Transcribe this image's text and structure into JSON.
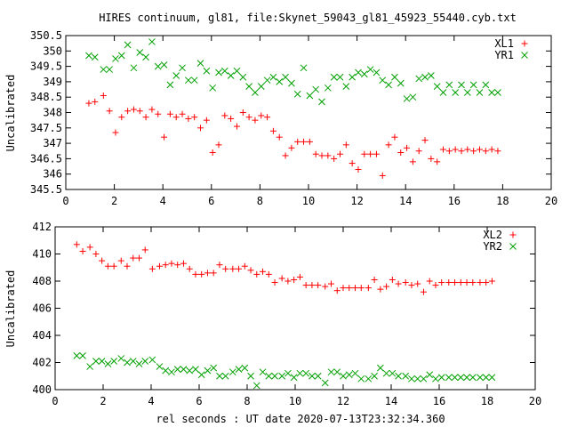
{
  "title": "HIRES continuum, gl81, file:Skynet_59043_gl81_45923_55440.cyb.txt",
  "xlabel": "rel seconds : UT date 2020-07-13T23:32:34.360",
  "chart_data": [
    {
      "type": "scatter",
      "ylabel": "Uncalibrated",
      "xlim": [
        0,
        20
      ],
      "ylim": [
        345.5,
        350.5
      ],
      "xticks": [
        "0",
        "2",
        "4",
        "6",
        "8",
        "10",
        "12",
        "14",
        "16",
        "18",
        "20"
      ],
      "yticks": [
        "345.5",
        "346",
        "346.5",
        "347",
        "347.5",
        "348",
        "348.5",
        "349",
        "349.5",
        "350",
        "350.5"
      ],
      "grid": false,
      "legend_position": "top-right",
      "series": [
        {
          "name": "XL1",
          "marker": "plus",
          "color": "#ff0000",
          "x": [
            0.95,
            1.2,
            1.55,
            1.8,
            2.05,
            2.3,
            2.55,
            2.8,
            3.05,
            3.3,
            3.55,
            3.8,
            4.05,
            4.3,
            4.55,
            4.8,
            5.05,
            5.3,
            5.55,
            5.8,
            6.05,
            6.3,
            6.55,
            6.8,
            7.05,
            7.3,
            7.55,
            7.8,
            8.05,
            8.3,
            8.55,
            8.8,
            9.05,
            9.3,
            9.55,
            9.8,
            10.05,
            10.3,
            10.55,
            10.8,
            11.05,
            11.3,
            11.55,
            11.8,
            12.05,
            12.3,
            12.55,
            12.8,
            13.05,
            13.3,
            13.55,
            13.8,
            14.05,
            14.3,
            14.55,
            14.8,
            15.05,
            15.3,
            15.55,
            15.8,
            16.05,
            16.3,
            16.55,
            16.8,
            17.05,
            17.3,
            17.55,
            17.8
          ],
          "y": [
            348.3,
            348.35,
            348.55,
            348.05,
            347.35,
            347.85,
            348.05,
            348.1,
            348.05,
            347.85,
            348.1,
            347.95,
            347.2,
            347.95,
            347.85,
            347.95,
            347.8,
            347.85,
            347.5,
            347.75,
            346.7,
            346.95,
            347.9,
            347.8,
            347.55,
            348.0,
            347.85,
            347.75,
            347.9,
            347.85,
            347.4,
            347.2,
            346.6,
            346.85,
            347.05,
            347.05,
            347.05,
            346.65,
            346.6,
            346.6,
            346.5,
            346.65,
            346.95,
            346.35,
            346.15,
            346.65,
            346.65,
            346.65,
            345.95,
            346.95,
            347.2,
            346.7,
            346.85,
            346.4,
            346.75,
            347.1,
            346.5,
            346.4,
            346.8,
            346.75,
            346.8,
            346.75,
            346.8,
            346.75,
            346.8,
            346.75,
            346.8,
            346.75
          ]
        },
        {
          "name": "YR1",
          "marker": "cross",
          "color": "#00a000",
          "x": [
            0.95,
            1.2,
            1.55,
            1.8,
            2.05,
            2.3,
            2.55,
            2.8,
            3.05,
            3.3,
            3.55,
            3.8,
            4.05,
            4.3,
            4.55,
            4.8,
            5.05,
            5.3,
            5.55,
            5.8,
            6.05,
            6.3,
            6.55,
            6.8,
            7.05,
            7.3,
            7.55,
            7.8,
            8.05,
            8.3,
            8.55,
            8.8,
            9.05,
            9.3,
            9.55,
            9.8,
            10.05,
            10.3,
            10.55,
            10.8,
            11.05,
            11.3,
            11.55,
            11.8,
            12.05,
            12.3,
            12.55,
            12.8,
            13.05,
            13.3,
            13.55,
            13.8,
            14.05,
            14.3,
            14.55,
            14.8,
            15.05,
            15.3,
            15.55,
            15.8,
            16.05,
            16.3,
            16.55,
            16.8,
            17.05,
            17.3,
            17.55,
            17.8
          ],
          "y": [
            349.85,
            349.8,
            349.4,
            349.4,
            349.75,
            349.85,
            350.2,
            349.45,
            349.95,
            349.8,
            350.3,
            349.5,
            349.55,
            348.9,
            349.2,
            349.45,
            349.05,
            349.05,
            349.6,
            349.35,
            348.8,
            349.3,
            349.35,
            349.2,
            349.35,
            349.15,
            348.85,
            348.65,
            348.85,
            349.05,
            349.15,
            349.0,
            349.15,
            348.95,
            348.6,
            349.45,
            348.55,
            348.75,
            348.35,
            348.8,
            349.15,
            349.15,
            348.85,
            349.15,
            349.3,
            349.25,
            349.4,
            349.3,
            349.05,
            348.9,
            349.15,
            348.95,
            348.45,
            348.5,
            349.1,
            349.15,
            349.2,
            348.85,
            348.65,
            348.9,
            348.65,
            348.9,
            348.65,
            348.9,
            348.65,
            348.9,
            348.65,
            348.65
          ]
        }
      ]
    },
    {
      "type": "scatter",
      "ylabel": "Uncalibrated",
      "xlim": [
        0,
        20
      ],
      "ylim": [
        400,
        412
      ],
      "xticks": [
        "0",
        "2",
        "4",
        "6",
        "8",
        "10",
        "12",
        "14",
        "16",
        "18",
        "20"
      ],
      "yticks": [
        "400",
        "402",
        "404",
        "406",
        "408",
        "410",
        "412"
      ],
      "grid": false,
      "legend_position": "top-right",
      "series": [
        {
          "name": "XL2",
          "marker": "plus",
          "color": "#ff0000",
          "x": [
            0.9,
            1.15,
            1.45,
            1.7,
            1.95,
            2.2,
            2.45,
            2.75,
            3.0,
            3.25,
            3.5,
            3.75,
            4.05,
            4.35,
            4.6,
            4.85,
            5.1,
            5.35,
            5.6,
            5.85,
            6.1,
            6.35,
            6.6,
            6.85,
            7.1,
            7.4,
            7.65,
            7.9,
            8.15,
            8.4,
            8.65,
            8.9,
            9.15,
            9.45,
            9.7,
            9.95,
            10.2,
            10.45,
            10.7,
            10.95,
            11.25,
            11.5,
            11.75,
            12.0,
            12.25,
            12.5,
            12.75,
            13.05,
            13.3,
            13.55,
            13.8,
            14.05,
            14.3,
            14.6,
            14.85,
            15.1,
            15.35,
            15.6,
            15.85,
            16.1,
            16.4,
            16.65,
            16.9,
            17.15,
            17.4,
            17.7,
            17.95,
            18.2
          ],
          "y": [
            410.7,
            410.2,
            410.5,
            410.0,
            409.5,
            409.1,
            409.1,
            409.5,
            409.1,
            409.7,
            409.7,
            410.3,
            408.9,
            409.1,
            409.2,
            409.3,
            409.2,
            409.3,
            408.9,
            408.5,
            408.5,
            408.6,
            408.6,
            409.2,
            408.9,
            408.9,
            408.9,
            409.1,
            408.8,
            408.5,
            408.7,
            408.5,
            407.9,
            408.2,
            408.0,
            408.1,
            408.3,
            407.7,
            407.7,
            407.7,
            407.6,
            407.8,
            407.3,
            407.5,
            407.5,
            407.5,
            407.5,
            407.5,
            408.1,
            407.4,
            407.6,
            408.1,
            407.8,
            407.9,
            407.7,
            407.8,
            407.2,
            408.0,
            407.7,
            407.9,
            407.9,
            407.9,
            407.9,
            407.9,
            407.9,
            407.9,
            407.9,
            408.0
          ]
        },
        {
          "name": "YR2",
          "marker": "cross",
          "color": "#00a000",
          "x": [
            0.9,
            1.15,
            1.45,
            1.7,
            1.95,
            2.2,
            2.45,
            2.75,
            3.0,
            3.25,
            3.5,
            3.75,
            4.05,
            4.35,
            4.6,
            4.85,
            5.1,
            5.35,
            5.6,
            5.85,
            6.1,
            6.35,
            6.6,
            6.85,
            7.1,
            7.4,
            7.65,
            7.9,
            8.15,
            8.4,
            8.65,
            8.9,
            9.15,
            9.45,
            9.7,
            9.95,
            10.2,
            10.45,
            10.7,
            10.95,
            11.25,
            11.5,
            11.75,
            12.0,
            12.25,
            12.5,
            12.75,
            13.05,
            13.3,
            13.55,
            13.8,
            14.05,
            14.3,
            14.6,
            14.85,
            15.1,
            15.35,
            15.6,
            15.85,
            16.1,
            16.4,
            16.65,
            16.9,
            17.15,
            17.4,
            17.7,
            17.95,
            18.2
          ],
          "y": [
            402.5,
            402.5,
            401.7,
            402.1,
            402.1,
            401.9,
            402.1,
            402.3,
            402.0,
            402.1,
            401.9,
            402.1,
            402.2,
            401.7,
            401.4,
            401.3,
            401.5,
            401.5,
            401.4,
            401.5,
            401.1,
            401.4,
            401.6,
            401.0,
            401.0,
            401.3,
            401.5,
            401.6,
            401.0,
            400.3,
            401.3,
            401.0,
            401.0,
            401.0,
            401.2,
            400.9,
            401.2,
            401.2,
            401.0,
            401.0,
            400.5,
            401.3,
            401.3,
            401.0,
            401.1,
            401.2,
            400.8,
            400.8,
            401.0,
            401.6,
            401.2,
            401.2,
            401.0,
            401.0,
            400.8,
            400.8,
            400.8,
            401.1,
            400.8,
            400.9,
            400.9,
            400.9,
            400.9,
            400.9,
            400.9,
            400.9,
            400.9,
            400.9
          ]
        }
      ]
    }
  ]
}
